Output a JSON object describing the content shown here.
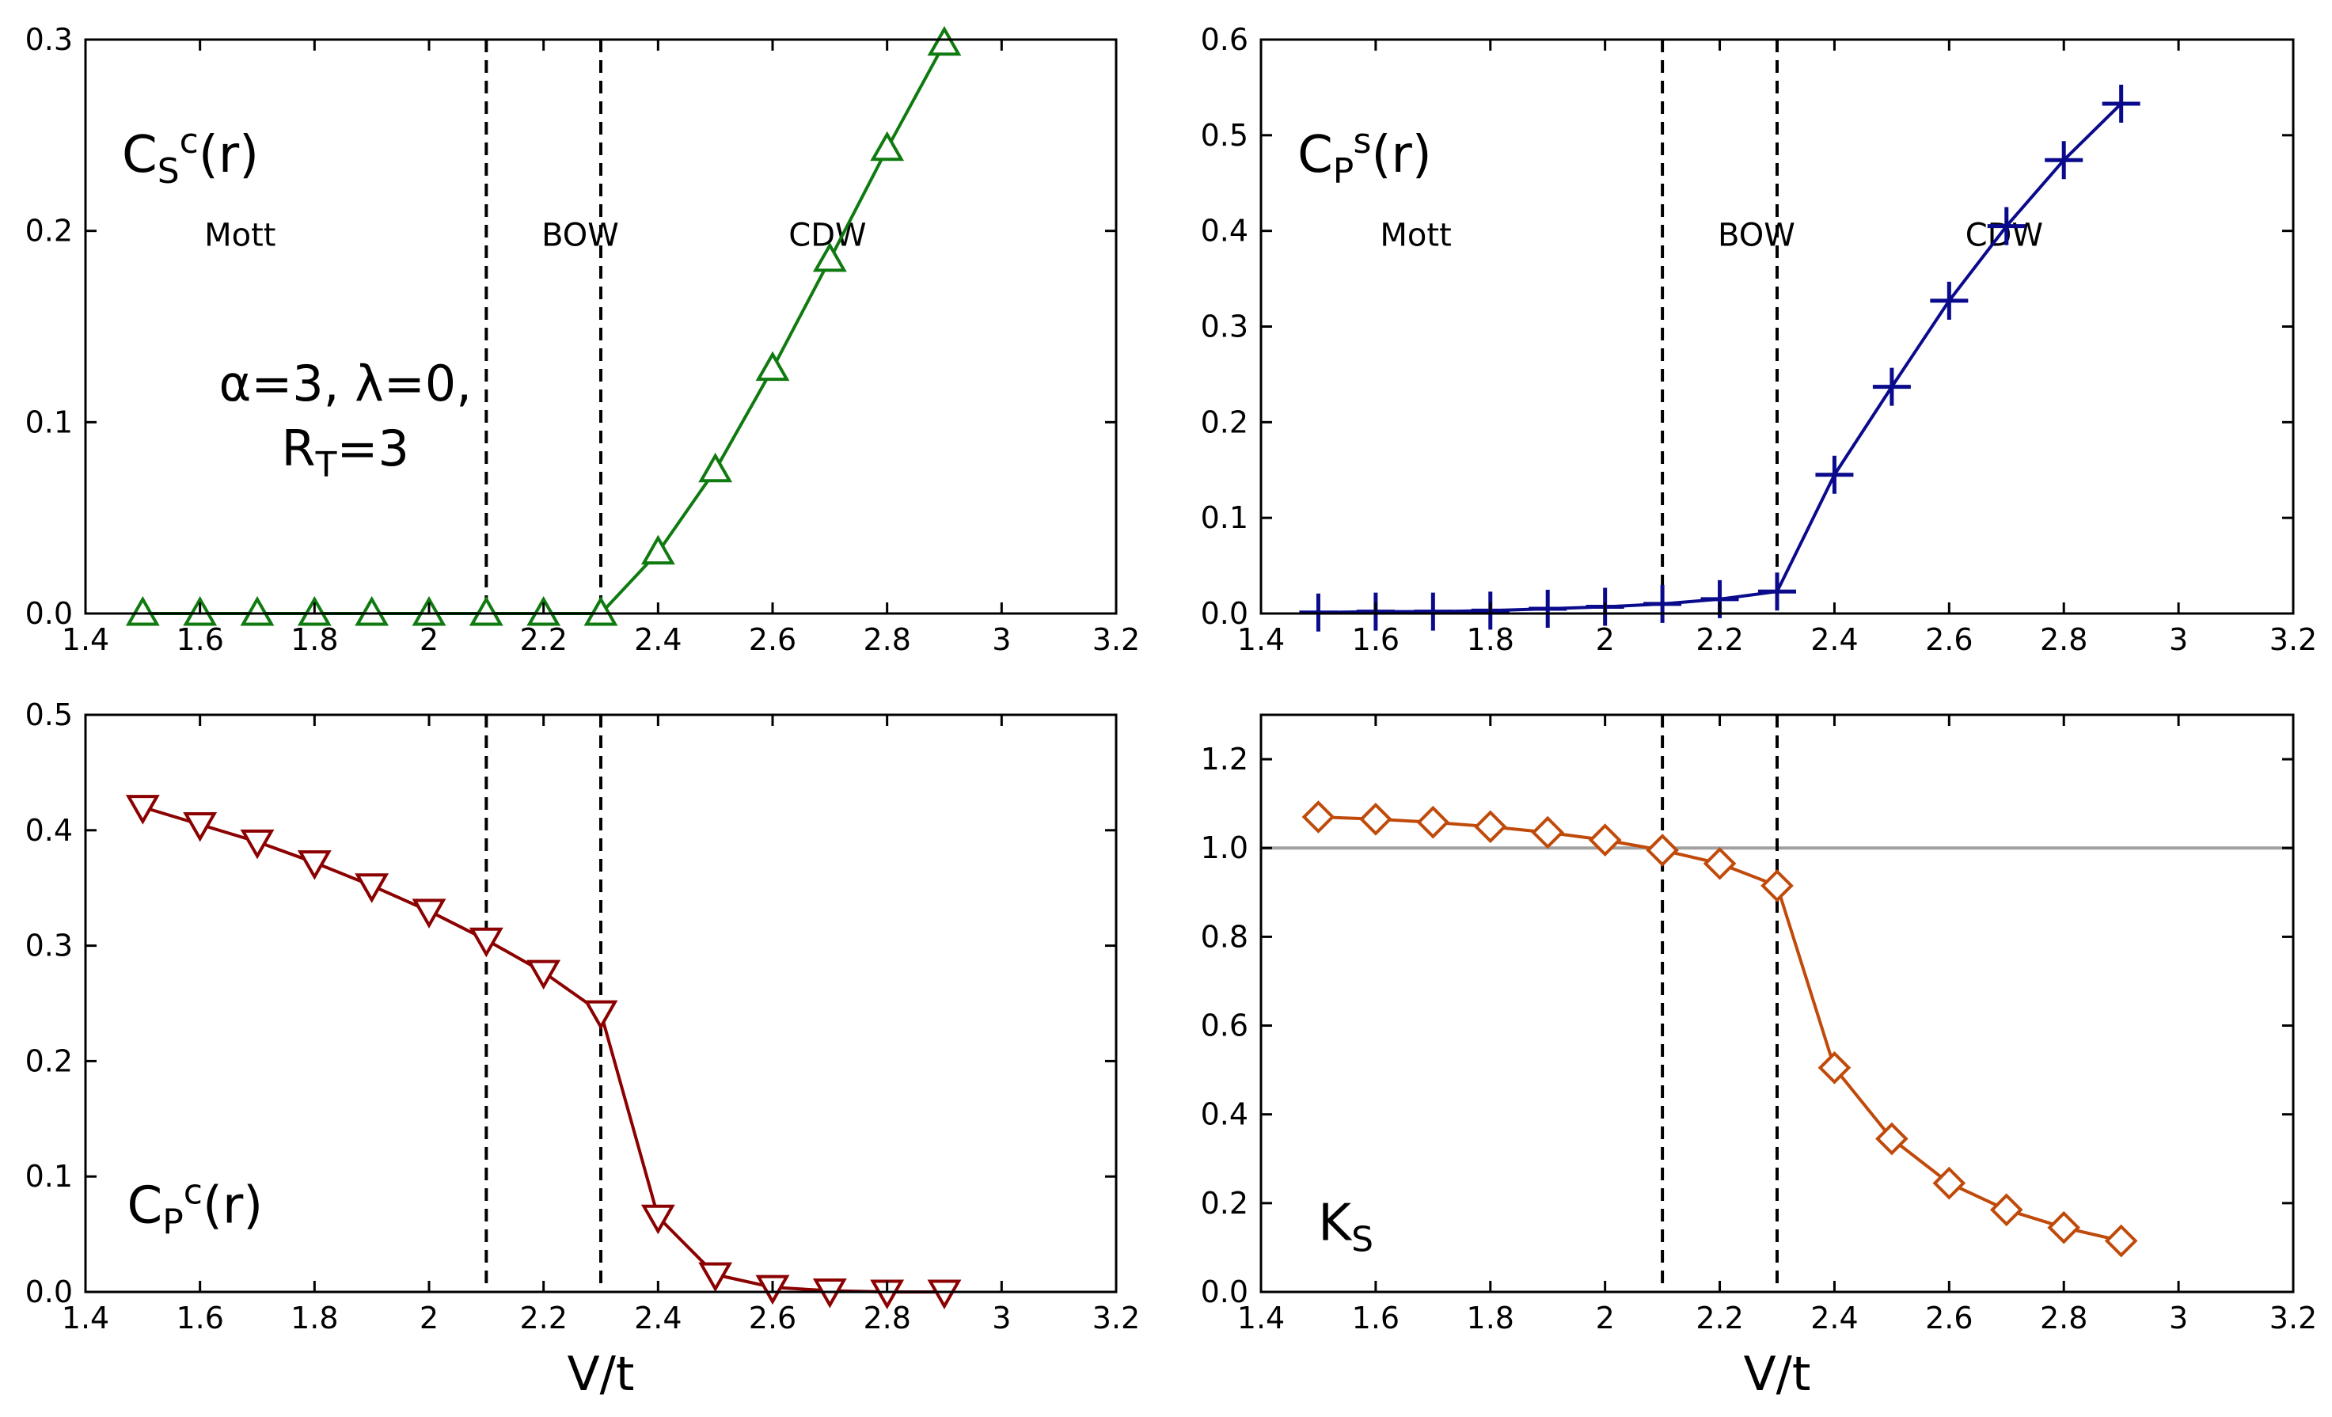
{
  "chart_data": [
    {
      "id": "top-left",
      "type": "line",
      "label": {
        "main": "C",
        "sub": "S",
        "sup": "c",
        "tail": "(r)"
      },
      "params": {
        "line1": "α=3, λ=0,",
        "line2_main": "R",
        "line2_sub": "T",
        "line2_tail": "=3"
      },
      "regions": [
        "Mott",
        "BOW",
        "CDW"
      ],
      "vlines": [
        2.1,
        2.3
      ],
      "hline": null,
      "xlabel": "",
      "xlim": [
        1.4,
        3.2
      ],
      "xticks": [
        1.4,
        1.6,
        1.8,
        2,
        2.2,
        2.4,
        2.6,
        2.8,
        3,
        3.2
      ],
      "xticklabels": [
        "1.4",
        "1.6",
        "1.8",
        "2",
        "2.2",
        "2.4",
        "2.6",
        "2.8",
        "3",
        "3.2"
      ],
      "ylim": [
        0,
        0.3
      ],
      "yticks": [
        0,
        0.1,
        0.2,
        0.3
      ],
      "yticklabels": [
        "0.0",
        "0.1",
        "0.2",
        "0.3"
      ],
      "series": [
        {
          "name": "C_S^c(r)",
          "color": "#0f7a0f",
          "marker": "triangle-up",
          "x": [
            1.5,
            1.6,
            1.7,
            1.8,
            1.9,
            2.0,
            2.1,
            2.2,
            2.3,
            2.4,
            2.5,
            2.6,
            2.7,
            2.8,
            2.9
          ],
          "y": [
            0,
            0,
            0,
            0,
            0,
            0,
            0,
            0,
            0,
            0.032,
            0.075,
            0.128,
            0.185,
            0.243,
            0.298
          ]
        }
      ]
    },
    {
      "id": "top-right",
      "type": "line",
      "label": {
        "main": "C",
        "sub": "P",
        "sup": "s",
        "tail": "(r)"
      },
      "params": null,
      "regions": [
        "Mott",
        "BOW",
        "CDW"
      ],
      "vlines": [
        2.1,
        2.3
      ],
      "hline": null,
      "xlabel": "",
      "xlim": [
        1.4,
        3.2
      ],
      "xticks": [
        1.4,
        1.6,
        1.8,
        2,
        2.2,
        2.4,
        2.6,
        2.8,
        3,
        3.2
      ],
      "xticklabels": [
        "1.4",
        "1.6",
        "1.8",
        "2",
        "2.2",
        "2.4",
        "2.6",
        "2.8",
        "3",
        "3.2"
      ],
      "ylim": [
        0,
        0.6
      ],
      "yticks": [
        0,
        0.1,
        0.2,
        0.3,
        0.4,
        0.5,
        0.6
      ],
      "yticklabels": [
        "0.0",
        "0.1",
        "0.2",
        "0.3",
        "0.4",
        "0.5",
        "0.6"
      ],
      "series": [
        {
          "name": "C_P^s(r)",
          "color": "#0a0a8c",
          "marker": "plus",
          "x": [
            1.5,
            1.6,
            1.7,
            1.8,
            1.9,
            2.0,
            2.1,
            2.2,
            2.3,
            2.4,
            2.5,
            2.6,
            2.7,
            2.8,
            2.9
          ],
          "y": [
            0.001,
            0.002,
            0.002,
            0.003,
            0.005,
            0.007,
            0.01,
            0.015,
            0.023,
            0.145,
            0.237,
            0.327,
            0.405,
            0.474,
            0.533
          ]
        }
      ]
    },
    {
      "id": "bottom-left",
      "type": "line",
      "label": {
        "main": "C",
        "sub": "P",
        "sup": "c",
        "tail": "(r)"
      },
      "params": null,
      "regions": [],
      "vlines": [
        2.1,
        2.3
      ],
      "hline": null,
      "xlabel": "V/t",
      "xlim": [
        1.4,
        3.2
      ],
      "xticks": [
        1.4,
        1.6,
        1.8,
        2,
        2.2,
        2.4,
        2.6,
        2.8,
        3,
        3.2
      ],
      "xticklabels": [
        "1.4",
        "1.6",
        "1.8",
        "2",
        "2.2",
        "2.4",
        "2.6",
        "2.8",
        "3",
        "3.2"
      ],
      "ylim": [
        0,
        0.5
      ],
      "yticks": [
        0,
        0.1,
        0.2,
        0.3,
        0.4,
        0.5
      ],
      "yticklabels": [
        "0.0",
        "0.1",
        "0.2",
        "0.3",
        "0.4",
        "0.5"
      ],
      "series": [
        {
          "name": "C_P^c(r)",
          "color": "#8b0000",
          "marker": "triangle-down",
          "x": [
            1.5,
            1.6,
            1.7,
            1.8,
            1.9,
            2.0,
            2.1,
            2.2,
            2.3,
            2.4,
            2.5,
            2.6,
            2.7,
            2.8,
            2.9
          ],
          "y": [
            0.42,
            0.405,
            0.39,
            0.372,
            0.352,
            0.33,
            0.305,
            0.277,
            0.242,
            0.065,
            0.015,
            0.004,
            0.001,
            0.0,
            0.0
          ]
        }
      ]
    },
    {
      "id": "bottom-right",
      "type": "line",
      "label": {
        "main": "K",
        "sub": "S",
        "sup": "",
        "tail": ""
      },
      "params": null,
      "regions": [],
      "vlines": [
        2.1,
        2.3
      ],
      "hline": 1.0,
      "xlabel": "V/t",
      "xlim": [
        1.4,
        3.2
      ],
      "xticks": [
        1.4,
        1.6,
        1.8,
        2,
        2.2,
        2.4,
        2.6,
        2.8,
        3,
        3.2
      ],
      "xticklabels": [
        "1.4",
        "1.6",
        "1.8",
        "2",
        "2.2",
        "2.4",
        "2.6",
        "2.8",
        "3",
        "3.2"
      ],
      "ylim": [
        0,
        1.3
      ],
      "yticks": [
        0,
        0.2,
        0.4,
        0.6,
        0.8,
        1.0,
        1.2
      ],
      "yticklabels": [
        "0.0",
        "0.2",
        "0.4",
        "0.6",
        "0.8",
        "1.0",
        "1.2"
      ],
      "series": [
        {
          "name": "K_S",
          "color": "#c04a0a",
          "marker": "diamond",
          "x": [
            1.5,
            1.6,
            1.7,
            1.8,
            1.9,
            2.0,
            2.1,
            2.2,
            2.3,
            2.4,
            2.5,
            2.6,
            2.7,
            2.8,
            2.9
          ],
          "y": [
            1.07,
            1.065,
            1.058,
            1.048,
            1.035,
            1.018,
            0.995,
            0.965,
            0.915,
            0.505,
            0.345,
            0.245,
            0.185,
            0.145,
            0.115
          ]
        }
      ]
    }
  ],
  "colors": {
    "hline": "#a0a0a0",
    "vline": "#000000",
    "axes": "#000000"
  }
}
